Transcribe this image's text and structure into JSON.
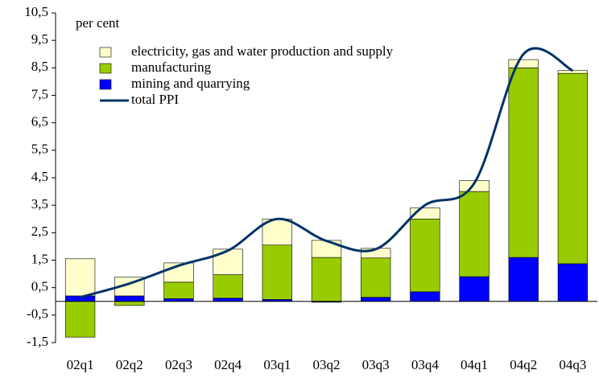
{
  "chart_data": {
    "type": "bar",
    "stacked": true,
    "unit_label": "per cent",
    "categories": [
      "02q1",
      "02q2",
      "02q3",
      "02q4",
      "03q1",
      "03q2",
      "03q3",
      "03q4",
      "04q1",
      "04q2",
      "04q3"
    ],
    "series": [
      {
        "name": "mining and quarrying",
        "color": "#0000ff",
        "values": [
          0.2,
          0.2,
          0.1,
          0.12,
          0.07,
          -0.03,
          0.15,
          0.35,
          0.9,
          1.6,
          1.37
        ]
      },
      {
        "name": "manufacturing",
        "color": "#99cc00",
        "values": [
          -1.3,
          -0.15,
          0.6,
          0.85,
          1.98,
          1.6,
          1.43,
          2.65,
          3.1,
          6.9,
          6.93
        ]
      },
      {
        "name": "electricity, gas and water production and supply",
        "color": "#ffffcc",
        "values": [
          1.35,
          0.68,
          0.7,
          0.93,
          0.95,
          0.62,
          0.35,
          0.4,
          0.4,
          0.3,
          0.1
        ]
      },
      {
        "name": "total PPI",
        "type": "line",
        "color": "#003366",
        "values": [
          0.15,
          0.65,
          1.3,
          1.85,
          3.0,
          2.2,
          1.9,
          3.5,
          4.3,
          9.0,
          8.4
        ]
      }
    ],
    "legend_order": [
      2,
      1,
      0,
      3
    ],
    "ylim": [
      -1.5,
      10.5
    ],
    "yticks": [
      {
        "value": -1.5,
        "label": "-1,5"
      },
      {
        "value": -0.5,
        "label": "-0,5"
      },
      {
        "value": 0.5,
        "label": "0,5"
      },
      {
        "value": 1.5,
        "label": "1,5"
      },
      {
        "value": 2.5,
        "label": "2,5"
      },
      {
        "value": 3.5,
        "label": "3,5"
      },
      {
        "value": 4.5,
        "label": "4,5"
      },
      {
        "value": 5.5,
        "label": "5,5"
      },
      {
        "value": 6.5,
        "label": "6,5"
      },
      {
        "value": 7.5,
        "label": "7,5"
      },
      {
        "value": 8.5,
        "label": "8,5"
      },
      {
        "value": 9.5,
        "label": "9,5"
      },
      {
        "value": 10.5,
        "label": "10,5"
      }
    ],
    "grid": false
  }
}
